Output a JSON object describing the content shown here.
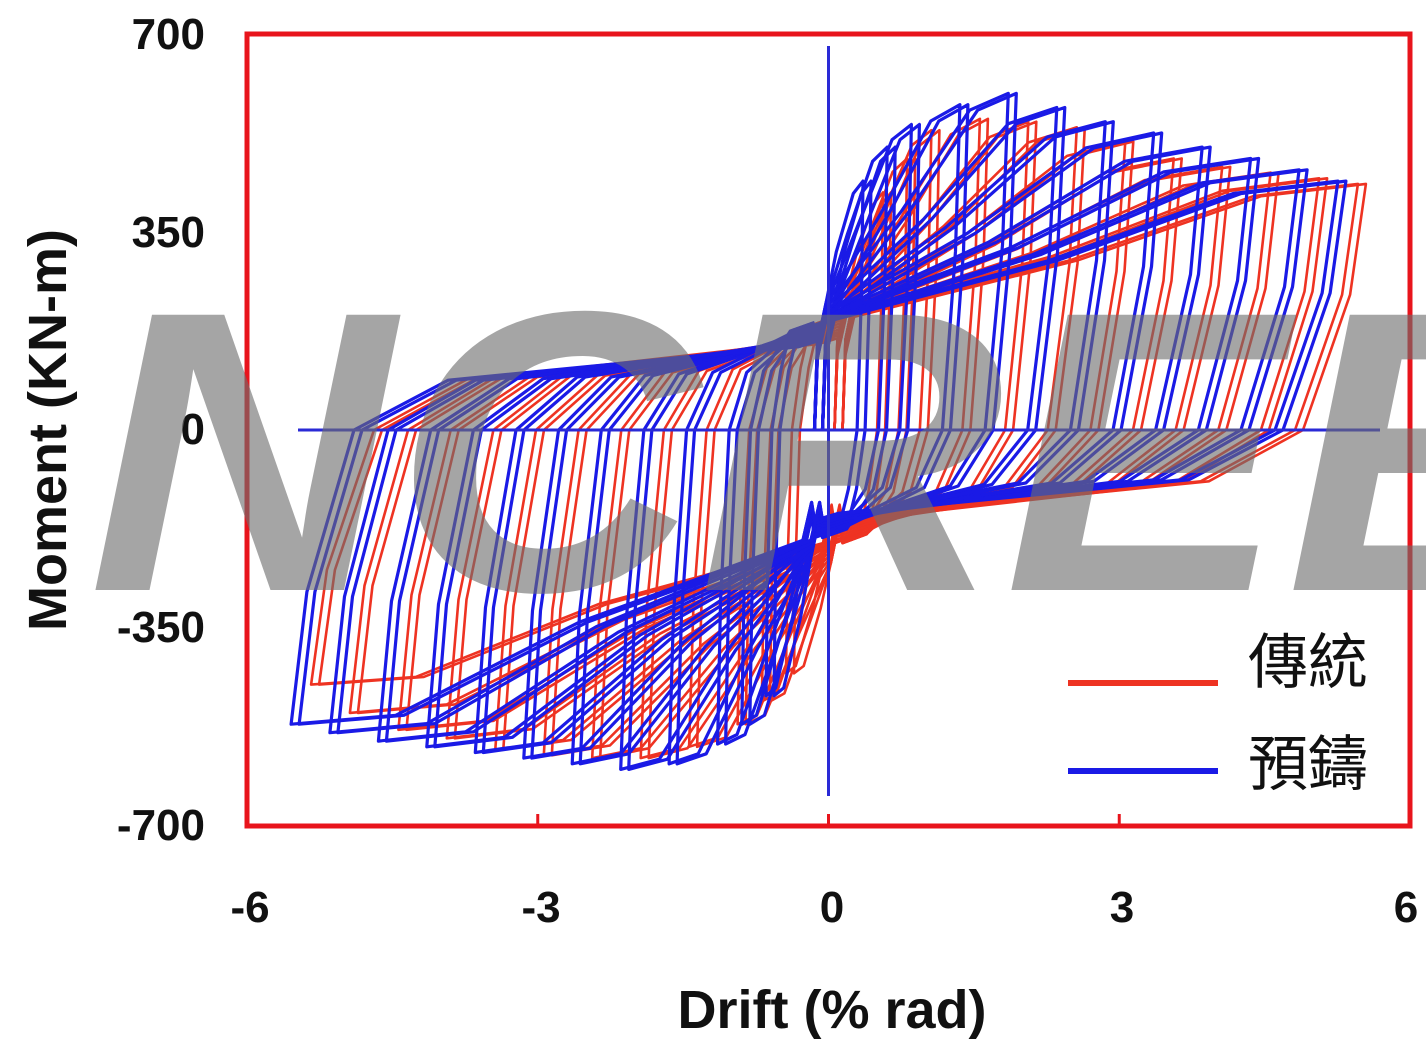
{
  "watermark": "NCREE",
  "chart_data": {
    "type": "line",
    "title": "",
    "xlabel": "Drift (% rad)",
    "ylabel": "Moment (KN-m)",
    "xlim": [
      -6,
      6
    ],
    "ylim": [
      -700,
      700
    ],
    "x_ticks": [
      -6,
      -3,
      0,
      3,
      6
    ],
    "x_tick_labels": [
      "-6",
      "-3",
      "0",
      "3",
      "6"
    ],
    "y_ticks": [
      -700,
      -350,
      0,
      350,
      700
    ],
    "y_tick_labels": [
      "-700",
      "-350",
      "0",
      "350",
      "700"
    ],
    "grid": false,
    "legend_position": "bottom-right",
    "frame_color": "#e8141c",
    "series": [
      {
        "name": "傳統",
        "color": "#ee3322",
        "cycles": [
          {
            "drift": 0.5,
            "m_pos": 420,
            "m_neg": -430,
            "m_cross": 200
          },
          {
            "drift": 0.75,
            "m_pos": 480,
            "m_neg": -480,
            "m_cross": 200
          },
          {
            "drift": 1.0,
            "m_pos": 530,
            "m_neg": -520,
            "m_cross": 200
          },
          {
            "drift": 1.5,
            "m_pos": 550,
            "m_neg": -560,
            "m_cross": 195
          },
          {
            "drift": 2.0,
            "m_pos": 545,
            "m_neg": -580,
            "m_cross": 190
          },
          {
            "drift": 2.5,
            "m_pos": 535,
            "m_neg": -580,
            "m_cross": 185
          },
          {
            "drift": 3.0,
            "m_pos": 510,
            "m_neg": -575,
            "m_cross": 180
          },
          {
            "drift": 3.5,
            "m_pos": 480,
            "m_neg": -565,
            "m_cross": 175
          },
          {
            "drift": 4.0,
            "m_pos": 465,
            "m_neg": -545,
            "m_cross": 175
          },
          {
            "drift": 4.5,
            "m_pos": 455,
            "m_neg": -530,
            "m_cross": 170
          },
          {
            "drift": 5.0,
            "m_pos": 445,
            "m_neg": -500,
            "m_cross": 170
          },
          {
            "drift": 5.4,
            "m_pos": 435,
            "m_neg": -450,
            "m_cross": 165
          }
        ]
      },
      {
        "name": "預鑄",
        "color": "#1a1ae6",
        "cycles": [
          {
            "drift": 0.5,
            "m_pos": 440,
            "m_neg": -470,
            "m_cross": 190
          },
          {
            "drift": 0.75,
            "m_pos": 500,
            "m_neg": -520,
            "m_cross": 190
          },
          {
            "drift": 1.0,
            "m_pos": 540,
            "m_neg": -555,
            "m_cross": 185
          },
          {
            "drift": 1.5,
            "m_pos": 575,
            "m_neg": -590,
            "m_cross": 185
          },
          {
            "drift": 2.0,
            "m_pos": 595,
            "m_neg": -600,
            "m_cross": 180
          },
          {
            "drift": 2.5,
            "m_pos": 570,
            "m_neg": -590,
            "m_cross": 175
          },
          {
            "drift": 3.0,
            "m_pos": 545,
            "m_neg": -580,
            "m_cross": 170
          },
          {
            "drift": 3.5,
            "m_pos": 525,
            "m_neg": -570,
            "m_cross": 170
          },
          {
            "drift": 4.0,
            "m_pos": 500,
            "m_neg": -560,
            "m_cross": 165
          },
          {
            "drift": 4.5,
            "m_pos": 480,
            "m_neg": -550,
            "m_cross": 165
          },
          {
            "drift": 5.0,
            "m_pos": 460,
            "m_neg": -535,
            "m_cross": 160
          },
          {
            "drift": 5.4,
            "m_pos": 440,
            "m_neg": -520,
            "m_cross": 160
          }
        ]
      }
    ]
  }
}
